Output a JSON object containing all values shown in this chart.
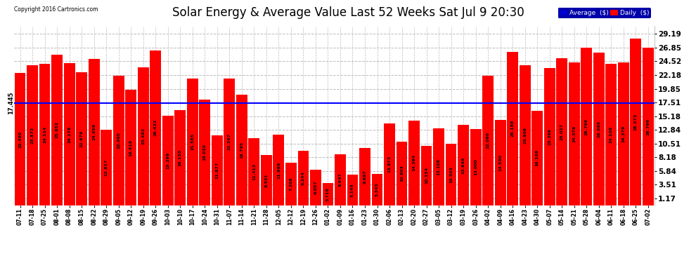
{
  "title": "Solar Energy & Average Value Last 52 Weeks Sat Jul 9 20:30",
  "copyright": "Copyright 2016 Cartronics.com",
  "average_value": 17.445,
  "bar_color": "#ff0000",
  "average_line_color": "#0000ff",
  "background_color": "#ffffff",
  "plot_bg_color": "#ffffff",
  "grid_color": "#bbbbbb",
  "yticks": [
    1.17,
    3.51,
    5.84,
    8.18,
    10.51,
    12.84,
    15.18,
    17.51,
    19.85,
    22.18,
    24.52,
    26.85,
    29.19
  ],
  "ymax": 30.5,
  "legend_avg_color": "#0000cc",
  "legend_daily_color": "#ff0000",
  "categories": [
    "07-11",
    "07-18",
    "07-25",
    "08-01",
    "08-08",
    "08-15",
    "08-22",
    "08-29",
    "09-05",
    "09-12",
    "09-19",
    "09-26",
    "10-03",
    "10-10",
    "10-17",
    "10-24",
    "10-31",
    "11-07",
    "11-14",
    "11-21",
    "11-28",
    "12-05",
    "12-12",
    "12-19",
    "12-26",
    "01-02",
    "01-09",
    "01-16",
    "01-23",
    "01-30",
    "02-06",
    "02-13",
    "02-20",
    "02-27",
    "03-05",
    "03-12",
    "03-19",
    "03-26",
    "04-02",
    "04-09",
    "04-16",
    "04-23",
    "04-30",
    "05-07",
    "05-14",
    "05-21",
    "05-28",
    "06-04",
    "06-11",
    "06-18",
    "06-25",
    "07-02"
  ],
  "values": [
    22.49,
    23.872,
    24.114,
    25.652,
    24.178,
    22.679,
    24.958,
    12.817,
    22.095,
    19.619,
    23.492,
    26.422,
    15.299,
    16.15,
    21.585,
    18.02,
    11.877,
    21.597,
    18.795,
    11.413,
    8.501,
    11.969,
    7.208,
    9.244,
    6.057,
    3.718,
    8.647,
    5.145,
    9.697,
    5.345,
    13.973,
    10.803,
    14.384,
    10.154,
    13.108,
    10.503,
    13.649,
    13.0,
    22.06,
    14.59,
    26.188,
    23.908,
    16.108,
    23.396,
    25.027,
    24.379,
    26.796,
    26.069,
    24.108,
    24.379,
    28.373,
    26.796
  ],
  "value_fontsize": 4.5,
  "tick_fontsize": 5.5,
  "ytick_fontsize": 7.5,
  "title_fontsize": 12,
  "average_label": "17.445"
}
